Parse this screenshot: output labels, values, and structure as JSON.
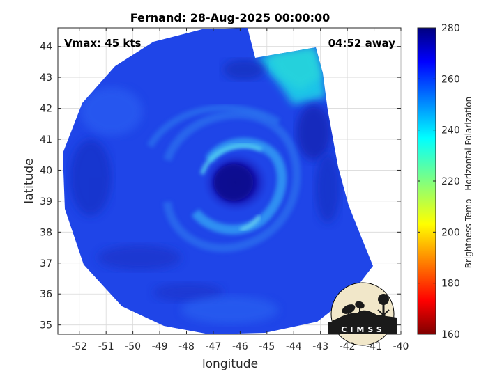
{
  "chart_data": {
    "type": "heatmap",
    "title": "Fernand: 28-Aug-2025 00:00:00",
    "xlabel": "longitude",
    "ylabel": "latitude",
    "xlim": [
      -52.8,
      -40
    ],
    "ylim": [
      34.7,
      44.6
    ],
    "x_ticks": [
      "-52",
      "-51",
      "-50",
      "-49",
      "-48",
      "-47",
      "-46",
      "-45",
      "-44",
      "-43",
      "-42",
      "-41",
      "-40"
    ],
    "y_ticks": [
      "35",
      "36",
      "37",
      "38",
      "39",
      "40",
      "41",
      "42",
      "43",
      "44"
    ],
    "grid": true,
    "annotations": {
      "vmax": "Vmax: 45 kts",
      "time_away": "04:52 away"
    },
    "colorbar": {
      "label": "Brightness Temp - Horizontal Polarization",
      "min": 160,
      "max": 280,
      "ticks": [
        "280",
        "260",
        "240",
        "220",
        "200",
        "180",
        "160"
      ],
      "colormap": "jet"
    },
    "storm_center": {
      "lon": -46.1,
      "lat": 39.8
    },
    "typical_values": {
      "background": 252,
      "eye": 268,
      "rainbands": 238
    }
  },
  "logo": {
    "text": "CIMSS"
  }
}
